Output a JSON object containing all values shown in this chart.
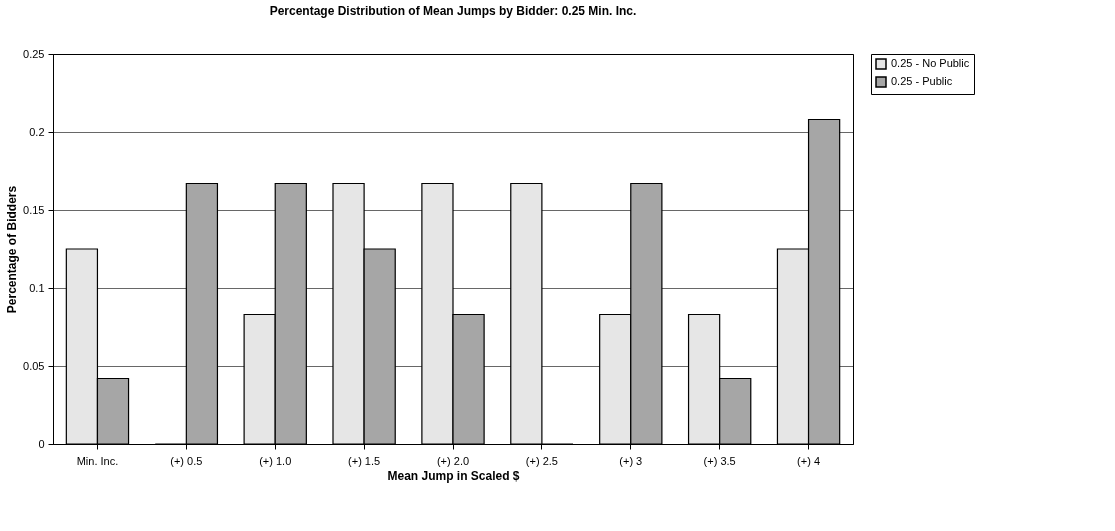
{
  "chart_data": {
    "type": "bar",
    "title": "Percentage Distribution of Mean Jumps by Bidder: 0.25 Min. Inc.",
    "xlabel": "Mean Jump in Scaled $",
    "ylabel": "Percentage of Bidders",
    "categories": [
      "Min. Inc.",
      "(+) 0.5",
      "(+) 1.0",
      "(+) 1.5",
      "(+) 2.0",
      "(+) 2.5",
      "(+) 3",
      "(+) 3.5",
      "(+) 4"
    ],
    "series": [
      {
        "name": "0.25 - No Public",
        "color": "#e6e6e6",
        "values": [
          0.125,
          0,
          0.083,
          0.167,
          0.167,
          0.167,
          0.083,
          0.083,
          0.125
        ]
      },
      {
        "name": "0.25 - Public",
        "color": "#a6a6a6",
        "values": [
          0.042,
          0.167,
          0.167,
          0.125,
          0.083,
          0,
          0.167,
          0.042,
          0.208
        ]
      }
    ],
    "ylim": [
      0,
      0.25
    ],
    "yticks": [
      0,
      0.05,
      0.1,
      0.15,
      0.2,
      0.25
    ],
    "grid": "y",
    "legend": "right"
  }
}
